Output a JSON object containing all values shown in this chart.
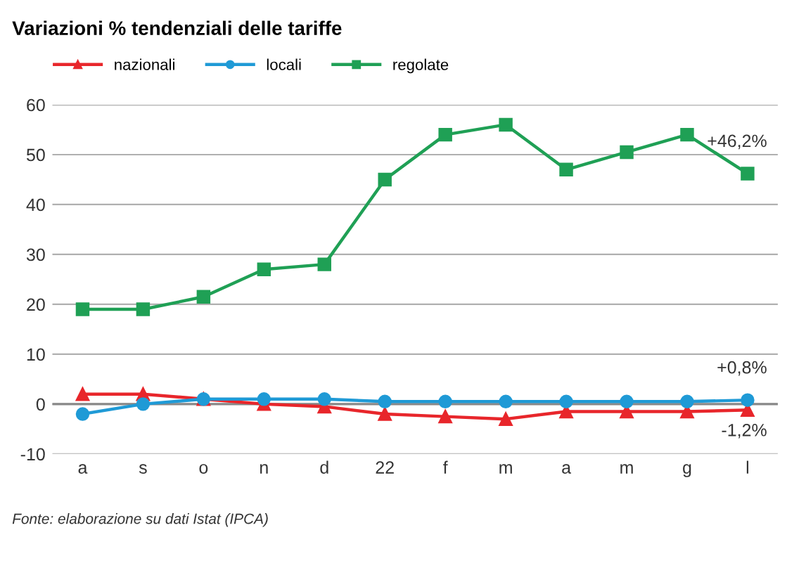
{
  "chart_data": {
    "type": "line",
    "title": "Variazioni % tendenziali delle tariffe",
    "categories": [
      "a",
      "s",
      "o",
      "n",
      "d",
      "22",
      "f",
      "m",
      "a",
      "m",
      "g",
      "l"
    ],
    "series": [
      {
        "name": "nazionali",
        "color": "#e8262b",
        "marker": "triangle",
        "values": [
          2,
          2,
          1,
          0,
          -0.5,
          -2,
          -2.5,
          -3,
          -1.5,
          -1.5,
          -1.5,
          -1.2
        ]
      },
      {
        "name": "locali",
        "color": "#1f9ad6",
        "marker": "circle",
        "values": [
          -2,
          0,
          1,
          1,
          1,
          0.5,
          0.5,
          0.5,
          0.5,
          0.5,
          0.5,
          0.8
        ]
      },
      {
        "name": "regolate",
        "color": "#1fa055",
        "marker": "square",
        "values": [
          19,
          19,
          21.5,
          27,
          28,
          45,
          54,
          56,
          47,
          50.5,
          54,
          46.2
        ]
      }
    ],
    "ylim": [
      -10,
      60
    ],
    "yticks": [
      -10,
      0,
      10,
      20,
      30,
      40,
      50,
      60
    ],
    "grid": "y",
    "legend": "top left",
    "annotations": [
      {
        "text": "+46,2%",
        "x": "l",
        "y": 46.2
      },
      {
        "text": "+0,8%",
        "x": "l",
        "y": 0.8
      },
      {
        "text": "-1,2%",
        "x": "l",
        "y": -1.2
      },
      "Fonte: elaborazione su dati Istat (IPCA)"
    ]
  }
}
